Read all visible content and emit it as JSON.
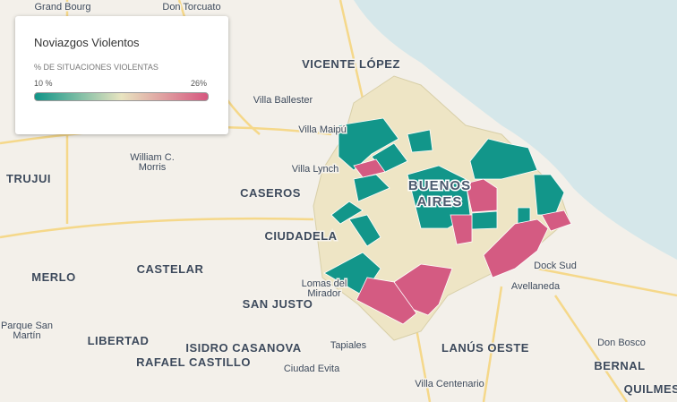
{
  "legend": {
    "title": "Noviazgos Violentos",
    "subtitle": "% DE SITUACIONES VIOLENTAS",
    "min_label": "10 %",
    "max_label": "26%"
  },
  "places": [
    {
      "lines": [
        "Grand Bourg"
      ]
    },
    {
      "lines": [
        "Don Torcuato"
      ]
    },
    {
      "lines": [
        "VICENTE LÓPEZ"
      ]
    },
    {
      "lines": [
        "Villa Ballester"
      ]
    },
    {
      "lines": [
        "Villa Maipú"
      ]
    },
    {
      "lines": [
        "William C.",
        "Morris"
      ]
    },
    {
      "lines": [
        "TRUJUI"
      ]
    },
    {
      "lines": [
        "Villa Lynch"
      ]
    },
    {
      "lines": [
        "CASEROS"
      ]
    },
    {
      "lines": [
        "BUENOS",
        "AIRES"
      ]
    },
    {
      "lines": [
        "CIUDADELA"
      ]
    },
    {
      "lines": [
        "CASTELAR"
      ]
    },
    {
      "lines": [
        "MERLO"
      ]
    },
    {
      "lines": [
        "Lomas del",
        "Mirador"
      ]
    },
    {
      "lines": [
        "SAN JUSTO"
      ]
    },
    {
      "lines": [
        "Dock Sud"
      ]
    },
    {
      "lines": [
        "Avellaneda"
      ]
    },
    {
      "lines": [
        "Parque San",
        "Martín"
      ]
    },
    {
      "lines": [
        "LIBERTAD"
      ]
    },
    {
      "lines": [
        "ISIDRO CASANOVA"
      ]
    },
    {
      "lines": [
        "Tapiales"
      ]
    },
    {
      "lines": [
        "LANÚS OESTE"
      ]
    },
    {
      "lines": [
        "Don Bosco"
      ]
    },
    {
      "lines": [
        "RAFAEL CASTILLO"
      ]
    },
    {
      "lines": [
        "Ciudad Evita"
      ]
    },
    {
      "lines": [
        "BERNAL"
      ]
    },
    {
      "lines": [
        "Villa Centenario"
      ]
    },
    {
      "lines": [
        "QUILMES"
      ]
    }
  ]
}
